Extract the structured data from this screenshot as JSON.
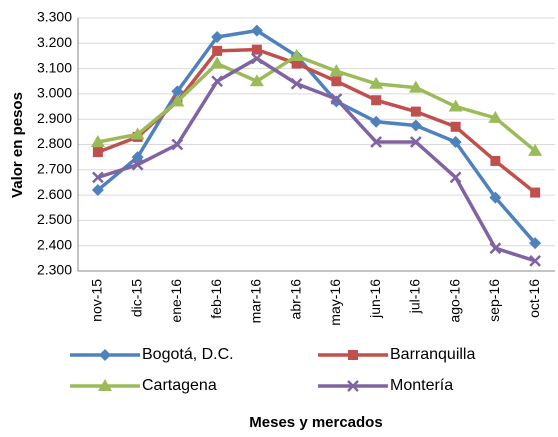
{
  "chart_data": {
    "type": "line",
    "x_label": "Meses y mercados",
    "y_label": "Valor en pesos",
    "categories": [
      "nov-15",
      "dic-15",
      "ene-16",
      "feb-16",
      "mar-16",
      "abr-16",
      "may-16",
      "jun-16",
      "jul-16",
      "ago-16",
      "sep-16",
      "oct-16"
    ],
    "series": [
      {
        "name": "Bogotá, D.C.",
        "color": "#4f81bd",
        "marker": "diamond",
        "values": [
          2620,
          2750,
          3010,
          3225,
          3250,
          3150,
          2970,
          2890,
          2875,
          2810,
          2590,
          2410
        ]
      },
      {
        "name": "Barranquilla",
        "color": "#c0504d",
        "marker": "square",
        "values": [
          2770,
          2830,
          2970,
          3170,
          3175,
          3120,
          3050,
          2975,
          2930,
          2870,
          2735,
          2610
        ]
      },
      {
        "name": "Cartagena",
        "color": "#9bbb59",
        "marker": "triangle",
        "values": [
          2810,
          2840,
          2970,
          3120,
          3050,
          3150,
          3090,
          3040,
          3025,
          2950,
          2905,
          2775
        ]
      },
      {
        "name": "Montería",
        "color": "#8064a2",
        "marker": "x",
        "values": [
          2670,
          2720,
          2800,
          3050,
          3140,
          3040,
          2980,
          2810,
          2810,
          2670,
          2390,
          2340
        ]
      }
    ],
    "ylim": [
      2300,
      3300
    ],
    "yticks": [
      {
        "value": 2300,
        "label": "2.300"
      },
      {
        "value": 2400,
        "label": "2.400"
      },
      {
        "value": 2500,
        "label": "2.500"
      },
      {
        "value": 2600,
        "label": "2.600"
      },
      {
        "value": 2700,
        "label": "2.700"
      },
      {
        "value": 2800,
        "label": "2.800"
      },
      {
        "value": 2900,
        "label": "2.900"
      },
      {
        "value": 3000,
        "label": "3.000"
      },
      {
        "value": 3100,
        "label": "3.100"
      },
      {
        "value": 3200,
        "label": "3.200"
      },
      {
        "value": 3300,
        "label": "3.300"
      }
    ],
    "grid": true
  }
}
